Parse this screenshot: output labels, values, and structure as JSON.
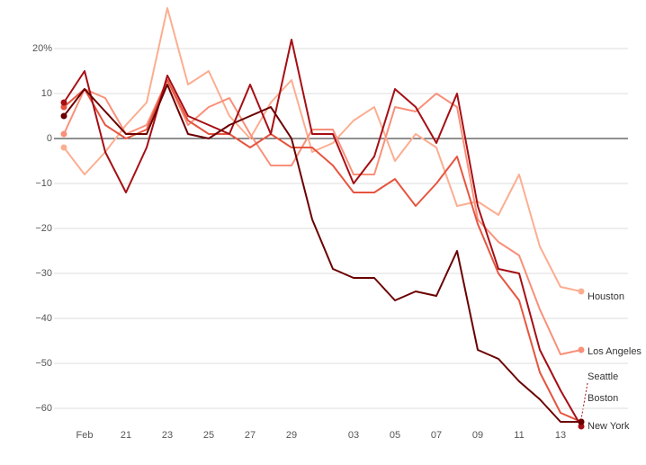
{
  "chart_data": {
    "type": "line",
    "categories": [
      null,
      "Feb",
      null,
      "21",
      null,
      "23",
      null,
      "25",
      null,
      "27",
      null,
      "29",
      null,
      null,
      "03",
      null,
      "05",
      null,
      "07",
      null,
      "09",
      null,
      "11",
      null,
      "13",
      null
    ],
    "ylim": [
      -66,
      30
    ],
    "yticks": [
      {
        "value": 20,
        "label": "20%"
      },
      10,
      0,
      {
        "value": -10,
        "label": "−10"
      },
      {
        "value": -20,
        "label": "−20"
      },
      {
        "value": -30,
        "label": "−30"
      },
      {
        "value": -40,
        "label": "−40"
      },
      {
        "value": -50,
        "label": "−50"
      },
      {
        "value": -60,
        "label": "−60"
      }
    ],
    "grid": true,
    "series": [
      {
        "name": "Houston",
        "color": "#fcae91",
        "values": [
          -2,
          -8,
          -3,
          3,
          8,
          29,
          12,
          15,
          5,
          0,
          8,
          13,
          -3,
          -1,
          4,
          7,
          -5,
          1,
          -2,
          -15,
          -14,
          -17,
          -8,
          -24,
          -33,
          -34
        ]
      },
      {
        "name": "Los Angeles",
        "color": "#f9907a",
        "values": [
          1,
          11,
          9,
          1,
          3,
          13,
          3,
          7,
          9,
          1,
          -6,
          -6,
          2,
          2,
          -8,
          -8,
          7,
          6,
          10,
          7,
          -18,
          -23,
          -26,
          -38,
          -48,
          -47
        ]
      },
      {
        "name": "Seattle",
        "color": "#e65540",
        "values": [
          7,
          11,
          3,
          0,
          2,
          13,
          4,
          1,
          1,
          -2,
          1,
          -2,
          -2,
          -6,
          -12,
          -12,
          -9,
          -15,
          -10,
          -4,
          -19,
          -30,
          -36,
          -52,
          -61,
          -63
        ]
      },
      {
        "name": "Boston",
        "color": "#a50f15",
        "values": [
          8,
          15,
          -3,
          -12,
          -2,
          14,
          5,
          3,
          1,
          12,
          1,
          22,
          1,
          1,
          -10,
          -4,
          11,
          7,
          -1,
          10,
          -15,
          -29,
          -30,
          -47,
          -56,
          -64
        ]
      },
      {
        "name": "New York",
        "color": "#6b0000",
        "values": [
          5,
          11,
          6,
          1,
          1,
          12,
          1,
          0,
          3,
          5,
          7,
          0,
          -18,
          -29,
          -31,
          -31,
          -36,
          -34,
          -35,
          -25,
          -47,
          -49,
          -54,
          -58,
          -63,
          -63
        ]
      }
    ]
  }
}
